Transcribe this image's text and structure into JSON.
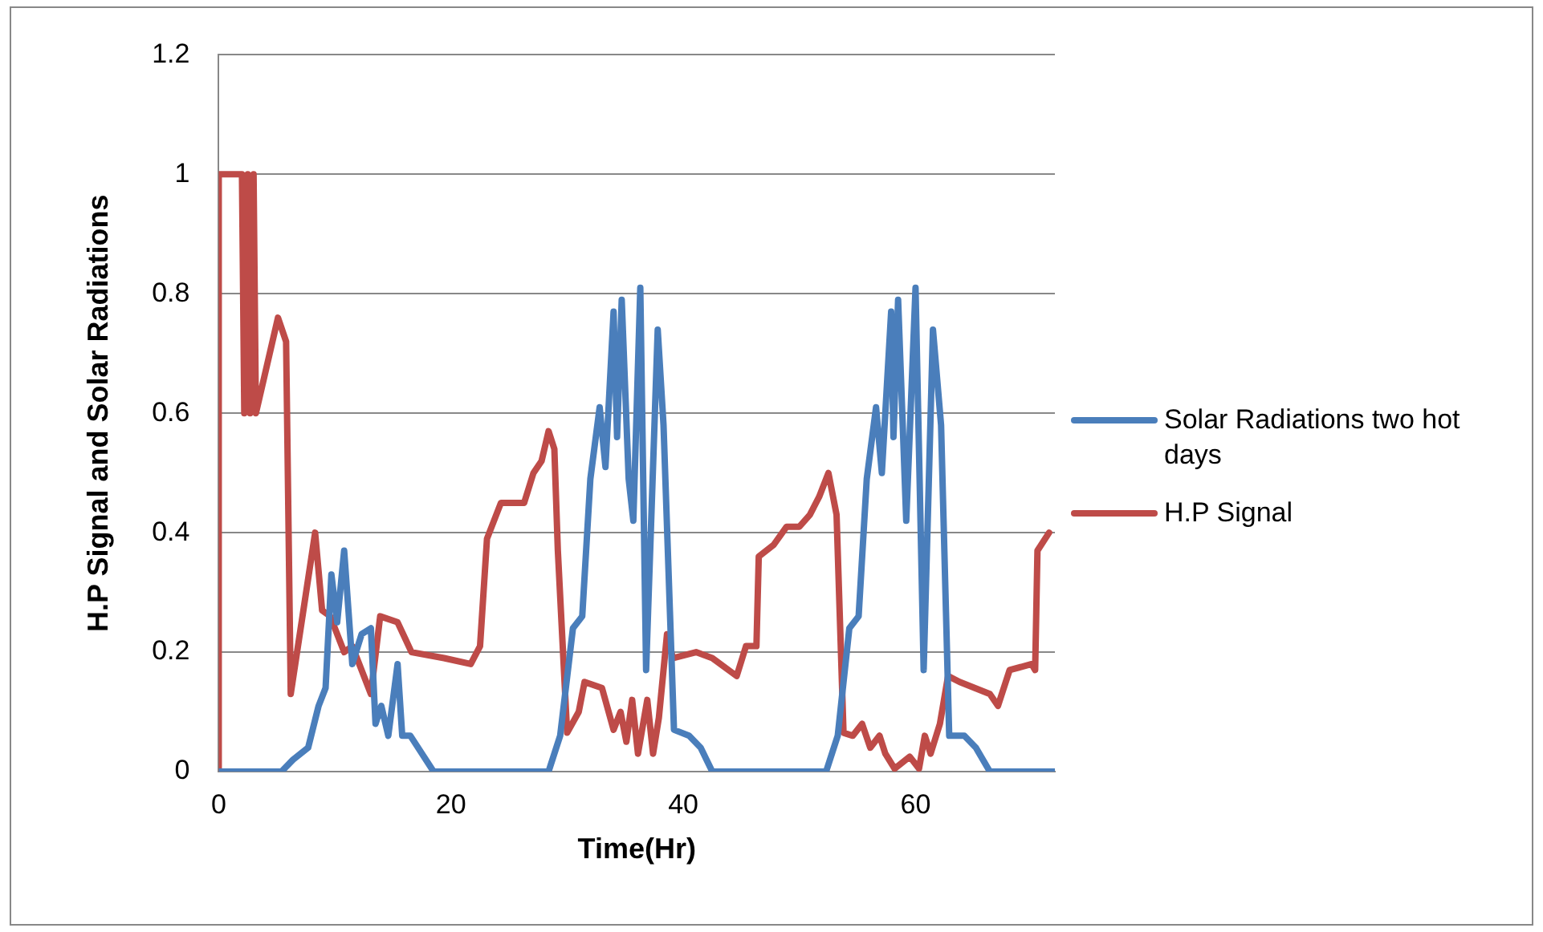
{
  "chart_data": {
    "type": "line",
    "xlabel": "Time(Hr)",
    "ylabel": "H.P Signal and Solar Radiations",
    "xlim": [
      0,
      72
    ],
    "xticks": [
      0,
      20,
      40,
      60
    ],
    "ylim": [
      0,
      1.2
    ],
    "yticks": [
      0,
      0.2,
      0.4,
      0.6,
      0.8,
      1,
      1.2
    ],
    "grid": "y",
    "legend": "right",
    "marker": "none",
    "line_style": "solid",
    "series": [
      {
        "name": "Solar Radiations two hot days",
        "color": "#4a7ebb",
        "x": [
          0,
          5.4,
          6.4,
          7.7,
          8.6,
          9.2,
          9.7,
          10.2,
          10.8,
          11.5,
          12.3,
          13.1,
          13.5,
          14,
          14.6,
          15.4,
          15.8,
          16.5,
          18.5,
          28.4,
          29.4,
          30.5,
          31.3,
          32,
          32.8,
          33.3,
          34,
          34.3,
          34.7,
          35.3,
          35.7,
          36.3,
          36.8,
          37.8,
          38.3,
          39.2,
          40.5,
          41.5,
          42.5,
          52.3,
          53.3,
          54.3,
          55.1,
          55.8,
          56.6,
          57.1,
          57.9,
          58.1,
          58.5,
          59.2,
          60,
          60.7,
          61.5,
          62.2,
          62.9,
          64.2,
          65.2,
          66.4,
          72
        ],
        "values": [
          0,
          0,
          0.02,
          0.04,
          0.11,
          0.14,
          0.33,
          0.25,
          0.37,
          0.18,
          0.23,
          0.24,
          0.08,
          0.11,
          0.06,
          0.18,
          0.06,
          0.06,
          0,
          0,
          0.06,
          0.24,
          0.26,
          0.49,
          0.61,
          0.51,
          0.77,
          0.56,
          0.79,
          0.49,
          0.42,
          0.81,
          0.17,
          0.74,
          0.58,
          0.07,
          0.06,
          0.04,
          0,
          0,
          0.06,
          0.24,
          0.26,
          0.49,
          0.61,
          0.5,
          0.77,
          0.56,
          0.79,
          0.42,
          0.81,
          0.17,
          0.74,
          0.58,
          0.06,
          0.06,
          0.04,
          0,
          0
        ]
      },
      {
        "name": "H.P Signal",
        "color": "#be4b48",
        "x": [
          0,
          0,
          2,
          2.2,
          2.5,
          2.7,
          3,
          3.2,
          5.1,
          5.8,
          6.2,
          8.3,
          8.9,
          9.6,
          10.8,
          11.5,
          13.1,
          13.9,
          15.4,
          16.6,
          19.4,
          21.7,
          22.5,
          23.1,
          24.3,
          26.3,
          27.1,
          27.8,
          28.4,
          28.9,
          29.2,
          30,
          31,
          31.5,
          33,
          34,
          34.6,
          35.1,
          35.6,
          36.1,
          36.9,
          37.4,
          37.9,
          38.6,
          39.1,
          41.1,
          42.5,
          44.6,
          45.4,
          46.3,
          46.5,
          47.8,
          48.9,
          50,
          50.9,
          51.7,
          52.5,
          53.2,
          53.8,
          54.6,
          55.4,
          56.1,
          56.9,
          57.4,
          58.2,
          59.5,
          60.3,
          60.8,
          61.3,
          62.1,
          62.8,
          63.8,
          66.4,
          67.1,
          68.1,
          70,
          70.3,
          70.5,
          71.5
        ],
        "values": [
          0,
          1,
          1,
          0.6,
          1,
          0.6,
          1,
          0.6,
          0.76,
          0.72,
          0.13,
          0.4,
          0.27,
          0.26,
          0.2,
          0.21,
          0.13,
          0.26,
          0.25,
          0.2,
          0.19,
          0.18,
          0.21,
          0.39,
          0.45,
          0.45,
          0.5,
          0.52,
          0.57,
          0.54,
          0.37,
          0.065,
          0.1,
          0.15,
          0.14,
          0.07,
          0.1,
          0.05,
          0.12,
          0.03,
          0.12,
          0.03,
          0.09,
          0.23,
          0.19,
          0.2,
          0.19,
          0.16,
          0.21,
          0.21,
          0.36,
          0.38,
          0.41,
          0.41,
          0.43,
          0.46,
          0.5,
          0.43,
          0.065,
          0.06,
          0.08,
          0.04,
          0.06,
          0.03,
          0.005,
          0.025,
          0.005,
          0.06,
          0.03,
          0.08,
          0.16,
          0.15,
          0.13,
          0.11,
          0.17,
          0.18,
          0.17,
          0.37,
          0.4
        ]
      }
    ]
  }
}
